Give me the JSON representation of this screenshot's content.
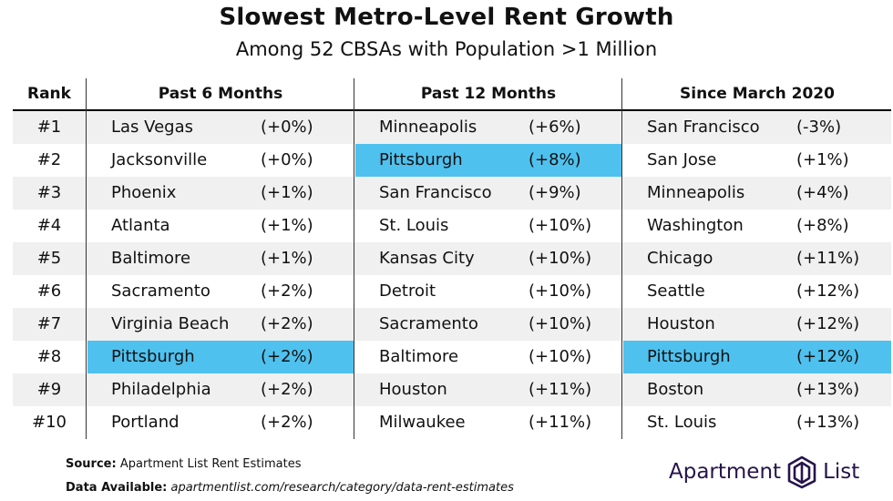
{
  "title": "Slowest Metro-Level Rent Growth",
  "subtitle": "Among 52 CBSAs with Population >1 Million",
  "headers": {
    "rank": "Rank",
    "p6": "Past 6 Months",
    "p12": "Past 12 Months",
    "march": "Since March 2020"
  },
  "rows": [
    {
      "rank": "#1",
      "p6_city": "Las Vegas",
      "p6_val": "(+0%)",
      "p12_city": "Minneapolis",
      "p12_val": "(+6%)",
      "m_city": "San Francisco",
      "m_val": "(-3%)"
    },
    {
      "rank": "#2",
      "p6_city": "Jacksonville",
      "p6_val": "(+0%)",
      "p12_city": "Pittsburgh",
      "p12_val": "(+8%)",
      "m_city": "San Jose",
      "m_val": "(+1%)"
    },
    {
      "rank": "#3",
      "p6_city": "Phoenix",
      "p6_val": "(+1%)",
      "p12_city": "San Francisco",
      "p12_val": "(+9%)",
      "m_city": "Minneapolis",
      "m_val": "(+4%)"
    },
    {
      "rank": "#4",
      "p6_city": "Atlanta",
      "p6_val": "(+1%)",
      "p12_city": "St. Louis",
      "p12_val": "(+10%)",
      "m_city": "Washington",
      "m_val": "(+8%)"
    },
    {
      "rank": "#5",
      "p6_city": "Baltimore",
      "p6_val": "(+1%)",
      "p12_city": "Kansas City",
      "p12_val": "(+10%)",
      "m_city": "Chicago",
      "m_val": "(+11%)"
    },
    {
      "rank": "#6",
      "p6_city": "Sacramento",
      "p6_val": "(+2%)",
      "p12_city": "Detroit",
      "p12_val": "(+10%)",
      "m_city": "Seattle",
      "m_val": "(+12%)"
    },
    {
      "rank": "#7",
      "p6_city": "Virginia Beach",
      "p6_val": "(+2%)",
      "p12_city": "Sacramento",
      "p12_val": "(+10%)",
      "m_city": "Houston",
      "m_val": "(+12%)"
    },
    {
      "rank": "#8",
      "p6_city": "Pittsburgh",
      "p6_val": "(+2%)",
      "p12_city": "Baltimore",
      "p12_val": "(+10%)",
      "m_city": "Pittsburgh",
      "m_val": "(+12%)"
    },
    {
      "rank": "#9",
      "p6_city": "Philadelphia",
      "p6_val": "(+2%)",
      "p12_city": "Houston",
      "p12_val": "(+11%)",
      "m_city": "Boston",
      "m_val": "(+13%)"
    },
    {
      "rank": "#10",
      "p6_city": "Portland",
      "p6_val": "(+2%)",
      "p12_city": "Milwaukee",
      "p12_val": "(+11%)",
      "m_city": "St. Louis",
      "m_val": "(+13%)"
    }
  ],
  "highlight_city": "Pittsburgh",
  "highlight_color": "#4fc1ee",
  "footer": {
    "source_label": "Source:",
    "source_text": "Apartment List Rent Estimates",
    "data_label": "Data Available:",
    "data_text": "apartmentlist.com/research/category/data-rent-estimates"
  },
  "logo": {
    "left": "Apartment",
    "right": "List",
    "icon": "apartment-list-logo-icon"
  }
}
